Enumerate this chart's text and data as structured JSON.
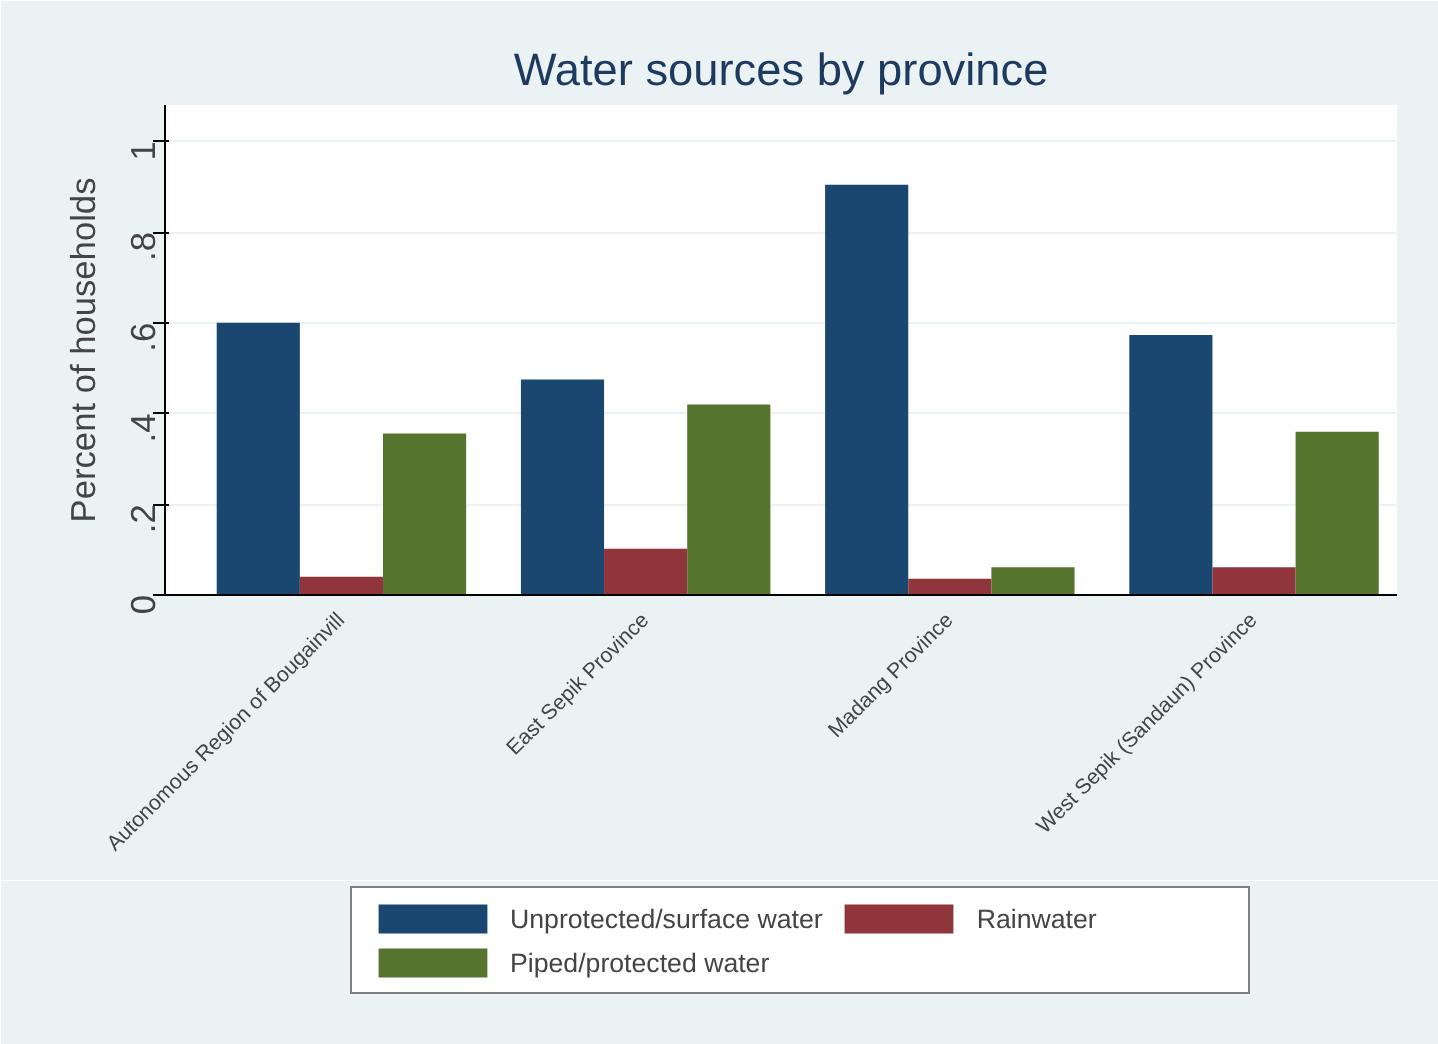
{
  "chart_data": {
    "type": "bar",
    "title": "Water sources by province",
    "ylabel": "Percent of households",
    "categories": [
      "Autonomous Region of Bougainvill",
      "East Sepik Province",
      "Madang Province",
      "West Sepik (Sandaun) Province"
    ],
    "series": [
      {
        "name": "Unprotected/surface water",
        "color": "#1a476f",
        "values": [
          0.6,
          0.475,
          0.904,
          0.573
        ]
      },
      {
        "name": "Rainwater",
        "color": "#90353b",
        "values": [
          0.04,
          0.102,
          0.036,
          0.061
        ]
      },
      {
        "name": "Piped/protected water",
        "color": "#55752f",
        "values": [
          0.356,
          0.42,
          0.061,
          0.36
        ]
      }
    ],
    "ylim": [
      0,
      1.08
    ],
    "yticks": [
      {
        "value": 0,
        "label": "0"
      },
      {
        "value": 0.2,
        "label": ".2"
      },
      {
        "value": 0.4,
        "label": ".4"
      },
      {
        "value": 0.6,
        "label": ".6"
      },
      {
        "value": 0.8,
        "label": ".8"
      },
      {
        "value": 1,
        "label": "1"
      }
    ],
    "grid": "y",
    "legend": "bottom"
  }
}
